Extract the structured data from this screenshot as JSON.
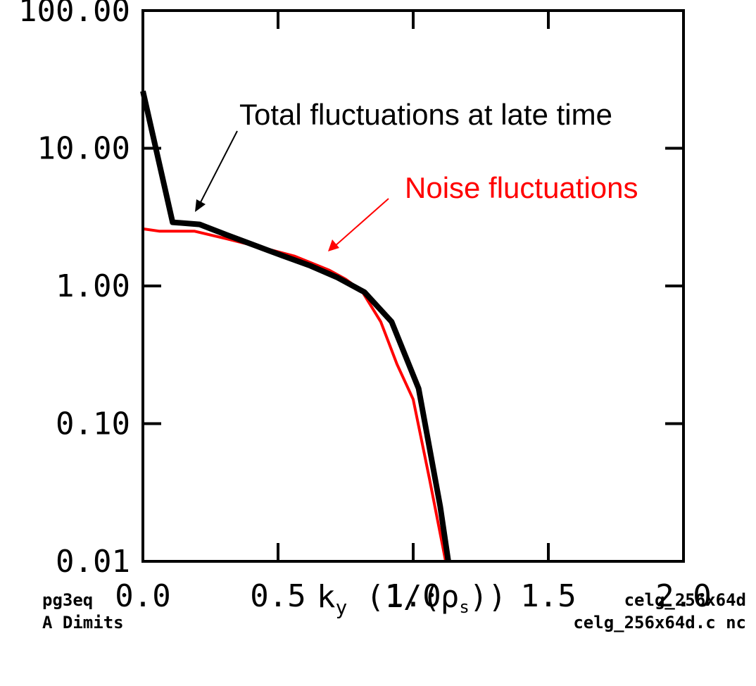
{
  "chart_data": {
    "type": "line",
    "xlabel_main": "k",
    "xlabel_sub": "y",
    "xlabel_rest": " (1/(ρ",
    "xlabel_sub2": "s",
    "xlabel_end": "))",
    "xlim": [
      0,
      2
    ],
    "ylim": [
      0.01,
      100
    ],
    "yscale": "log",
    "x_ticks": [
      0,
      0.5,
      1.0,
      1.5,
      2.0
    ],
    "x_tick_labels": [
      "0.0",
      "0.5",
      "1.0",
      "1.5",
      "2.0"
    ],
    "y_ticks": [
      0.01,
      0.1,
      1,
      10,
      100
    ],
    "y_tick_labels": [
      "0.01",
      "0.10",
      "1.00",
      "10.00",
      "100.00"
    ],
    "series": [
      {
        "name": "Noise fluctuations",
        "color": "#ff0000",
        "x": [
          0.0,
          0.06,
          0.19,
          0.31,
          0.44,
          0.56,
          0.69,
          0.75,
          0.81,
          0.88,
          0.94,
          1.0,
          1.06,
          1.12
        ],
        "y": [
          2.6,
          2.5,
          2.5,
          2.2,
          1.9,
          1.65,
          1.3,
          1.12,
          0.92,
          0.55,
          0.27,
          0.15,
          0.04,
          0.01
        ]
      },
      {
        "name": "Total fluctuations at late time",
        "color": "#000000",
        "x": [
          0.0,
          0.11,
          0.21,
          0.31,
          0.42,
          0.52,
          0.62,
          0.72,
          0.82,
          0.92,
          1.02,
          1.1,
          1.13
        ],
        "y": [
          26,
          2.9,
          2.8,
          2.35,
          1.95,
          1.65,
          1.4,
          1.15,
          0.9,
          0.55,
          0.18,
          0.025,
          0.01
        ]
      }
    ],
    "annotations": [
      {
        "text": "Total fluctuations at late time",
        "color": "#000000"
      },
      {
        "text": "Noise fluctuations",
        "color": "#ff0000"
      }
    ]
  },
  "footer": {
    "left_line1": "pg3eq",
    "left_line2": "A  Dimits",
    "right_line1": "celg_256x64d",
    "right_line2": "celg_256x64d.c nc"
  }
}
